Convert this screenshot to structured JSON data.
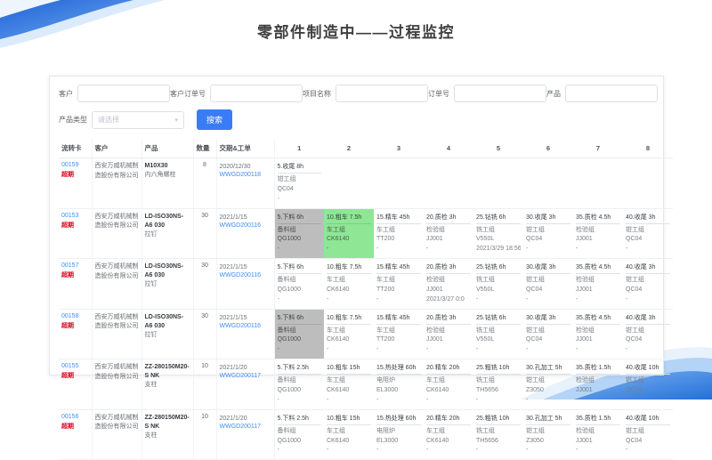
{
  "page": {
    "title": "零部件制造中——过程监控"
  },
  "filters": {
    "fields": [
      {
        "label": "客户",
        "value": ""
      },
      {
        "label": "客户订单号",
        "value": ""
      },
      {
        "label": "项目名称",
        "value": ""
      },
      {
        "label": "订单号",
        "value": ""
      },
      {
        "label": "产品",
        "value": ""
      }
    ],
    "type_label": "产品类型",
    "type_placeholder": "请选择",
    "search_label": "搜索"
  },
  "colors": {
    "accent_blue": "#3a7cf6",
    "link_blue": "#3d8ef5",
    "overdue_red": "#d9001b",
    "step_done_gray": "#bdbdbd",
    "step_active_green": "#8fe695"
  },
  "table": {
    "headers": [
      "流转卡",
      "客户",
      "产品",
      "数量",
      "交期&工单",
      "1",
      "2",
      "3",
      "4",
      "5",
      "6",
      "7",
      "8"
    ],
    "rows": [
      {
        "card_no": "00159",
        "overdue": "超期",
        "customer": "西安万威机械制造股份有限公司",
        "product_model": "M10X30",
        "product_name": "内六角螺栓",
        "qty": "8",
        "due_date": "2020/12/30",
        "work_order": "WWGD200118",
        "steps": [
          {
            "title": "5.收尾 8h",
            "group": "钳工组",
            "machine": "QC04",
            "time": "-",
            "bg": ""
          },
          null,
          null,
          null,
          null,
          null,
          null,
          null
        ]
      },
      {
        "card_no": "00153",
        "overdue": "超期",
        "customer": "西安万威机械制造股份有限公司",
        "product_model": "LD-ISO30NS-A6 030",
        "product_name": "拉钉",
        "qty": "30",
        "due_date": "2021/1/15",
        "work_order": "WWGD200116",
        "steps": [
          {
            "title": "5.下料 6h",
            "group": "备料组",
            "machine": "QG1000",
            "time": "-",
            "bg": "gray"
          },
          {
            "title": "10.粗车 7.5h",
            "group": "车工组",
            "machine": "CK6140",
            "time": "-",
            "bg": "green"
          },
          {
            "title": "15.精车 45h",
            "group": "车工组",
            "machine": "TT200",
            "time": "-",
            "bg": ""
          },
          {
            "title": "20.质检 3h",
            "group": "检验组",
            "machine": "JJ001",
            "time": "-",
            "bg": ""
          },
          {
            "title": "25.钻铣 6h",
            "group": "铣工组",
            "machine": "V550L",
            "time": "2021/3/29 18:56",
            "bg": ""
          },
          {
            "title": "30.收尾 3h",
            "group": "钳工组",
            "machine": "QC04",
            "time": "-",
            "bg": ""
          },
          {
            "title": "35.质检 4.5h",
            "group": "检验组",
            "machine": "JJ001",
            "time": "-",
            "bg": ""
          },
          {
            "title": "40.收尾 3h",
            "group": "钳工组",
            "machine": "QC04",
            "time": "-",
            "bg": ""
          }
        ]
      },
      {
        "card_no": "00157",
        "overdue": "超期",
        "customer": "西安万威机械制造股份有限公司",
        "product_model": "LD-ISO30NS-A6 030",
        "product_name": "拉钉",
        "qty": "30",
        "due_date": "2021/1/15",
        "work_order": "WWGD200116",
        "steps": [
          {
            "title": "5.下料 6h",
            "group": "备料组",
            "machine": "QG1000",
            "time": "-",
            "bg": ""
          },
          {
            "title": "10.粗车 7.5h",
            "group": "车工组",
            "machine": "CK6140",
            "time": "-",
            "bg": ""
          },
          {
            "title": "15.精车 45h",
            "group": "车工组",
            "machine": "TT200",
            "time": "-",
            "bg": ""
          },
          {
            "title": "20.质检 3h",
            "group": "检验组",
            "machine": "JJ001",
            "time": "2021/3/27 0:0",
            "bg": ""
          },
          {
            "title": "25.钻铣 6h",
            "group": "铣工组",
            "machine": "V550L",
            "time": "-",
            "bg": ""
          },
          {
            "title": "30.收尾 3h",
            "group": "钳工组",
            "machine": "QC04",
            "time": "-",
            "bg": ""
          },
          {
            "title": "35.质检 4.5h",
            "group": "检验组",
            "machine": "JJ001",
            "time": "-",
            "bg": ""
          },
          {
            "title": "40.收尾 3h",
            "group": "钳工组",
            "machine": "QC04",
            "time": "-",
            "bg": ""
          }
        ]
      },
      {
        "card_no": "00158",
        "overdue": "超期",
        "customer": "西安万威机械制造股份有限公司",
        "product_model": "LD-ISO30NS-A6 030",
        "product_name": "拉钉",
        "qty": "30",
        "due_date": "2021/1/15",
        "work_order": "WWGD200116",
        "steps": [
          {
            "title": "5.下料 6h",
            "group": "备料组",
            "machine": "QG1000",
            "time": "-",
            "bg": "gray"
          },
          {
            "title": "10.粗车 7.5h",
            "group": "车工组",
            "machine": "CK6140",
            "time": "-",
            "bg": ""
          },
          {
            "title": "15.精车 45h",
            "group": "车工组",
            "machine": "TT200",
            "time": "-",
            "bg": ""
          },
          {
            "title": "20.质检 3h",
            "group": "检验组",
            "machine": "JJ001",
            "time": "-",
            "bg": ""
          },
          {
            "title": "25.钻铣 6h",
            "group": "铣工组",
            "machine": "V550L",
            "time": "-",
            "bg": ""
          },
          {
            "title": "30.收尾 3h",
            "group": "钳工组",
            "machine": "QC04",
            "time": "-",
            "bg": ""
          },
          {
            "title": "35.质检 4.5h",
            "group": "检验组",
            "machine": "JJ001",
            "time": "-",
            "bg": ""
          },
          {
            "title": "40.收尾 3h",
            "group": "钳工组",
            "machine": "QC04",
            "time": "-",
            "bg": ""
          }
        ]
      },
      {
        "card_no": "00155",
        "overdue": "超期",
        "customer": "西安万威机械制造股份有限公司",
        "product_model": "ZZ-280150M20-S NK",
        "product_name": "支柱",
        "qty": "10",
        "due_date": "2021/1/20",
        "work_order": "WWGD200117",
        "steps": [
          {
            "title": "5.下料 2.5h",
            "group": "备料组",
            "machine": "QG1000",
            "time": "-",
            "bg": ""
          },
          {
            "title": "10.粗车 15h",
            "group": "车工组",
            "machine": "CK6140",
            "time": "-",
            "bg": ""
          },
          {
            "title": "15.热处理 60h",
            "group": "电阻炉",
            "machine": "EL3000",
            "time": "-",
            "bg": ""
          },
          {
            "title": "20.精车 20h",
            "group": "车工组",
            "machine": "CK6140",
            "time": "-",
            "bg": ""
          },
          {
            "title": "25.粗铣 10h",
            "group": "铣工组",
            "machine": "TH5656",
            "time": "-",
            "bg": ""
          },
          {
            "title": "30.孔加工 5h",
            "group": "钳工组",
            "machine": "Z3050",
            "time": "-",
            "bg": ""
          },
          {
            "title": "35.质检 1.5h",
            "group": "检验组",
            "machine": "JJ001",
            "time": "-",
            "bg": ""
          },
          {
            "title": "40.收尾 10h",
            "group": "钳工组",
            "machine": "QC04",
            "time": "-",
            "bg": ""
          }
        ]
      },
      {
        "card_no": "00156",
        "overdue": "超期",
        "customer": "西安万威机械制造股份有限公司",
        "product_model": "ZZ-280150M20-S NK",
        "product_name": "支柱",
        "qty": "10",
        "due_date": "2021/1/20",
        "work_order": "WWGD200117",
        "steps": [
          {
            "title": "5.下料 2.5h",
            "group": "备料组",
            "machine": "QG1000",
            "time": "-",
            "bg": ""
          },
          {
            "title": "10.粗车 15h",
            "group": "车工组",
            "machine": "CK6140",
            "time": "-",
            "bg": ""
          },
          {
            "title": "15.热处理 60h",
            "group": "电阻炉",
            "machine": "EL3000",
            "time": "-",
            "bg": ""
          },
          {
            "title": "20.精车 20h",
            "group": "车工组",
            "machine": "CK6140",
            "time": "-",
            "bg": ""
          },
          {
            "title": "25.粗铣 10h",
            "group": "铣工组",
            "machine": "TH5656",
            "time": "-",
            "bg": ""
          },
          {
            "title": "30.孔加工 5h",
            "group": "钳工组",
            "machine": "Z3050",
            "time": "-",
            "bg": ""
          },
          {
            "title": "35.质检 1.5h",
            "group": "检验组",
            "machine": "JJ001",
            "time": "-",
            "bg": ""
          },
          {
            "title": "40.收尾 10h",
            "group": "钳工组",
            "machine": "QC04",
            "time": "-",
            "bg": ""
          }
        ]
      }
    ]
  }
}
